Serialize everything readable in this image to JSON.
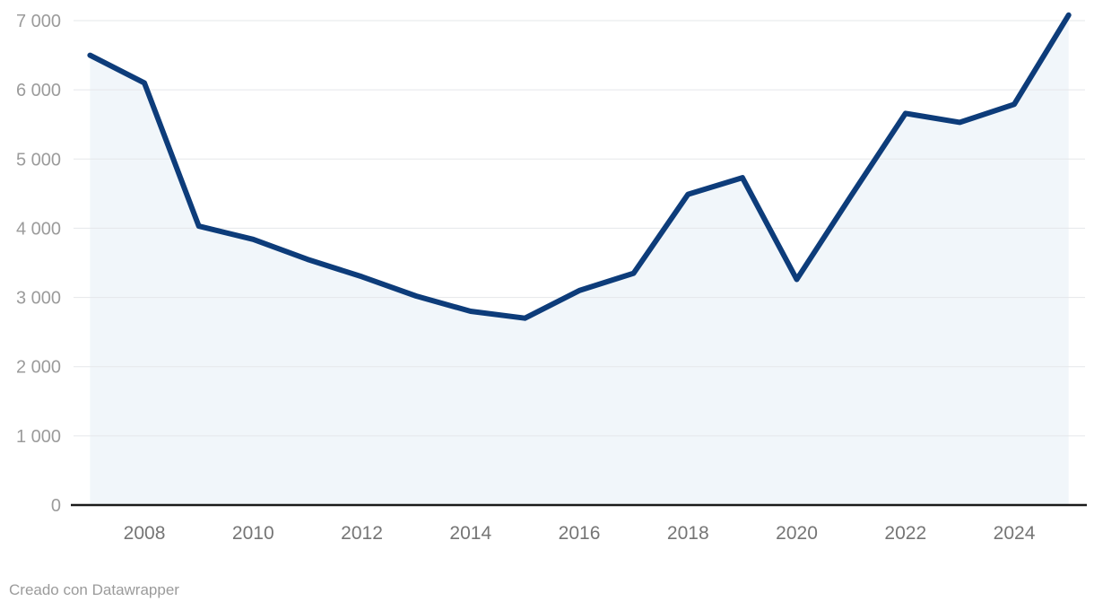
{
  "chart_data": {
    "type": "area",
    "title": "",
    "xlabel": "",
    "ylabel": "",
    "x": [
      2007,
      2008,
      2009,
      2010,
      2011,
      2012,
      2013,
      2014,
      2015,
      2016,
      2017,
      2018,
      2019,
      2020,
      2021,
      2022,
      2023,
      2024,
      2025
    ],
    "values": [
      6500,
      6100,
      4030,
      3840,
      3550,
      3300,
      3020,
      2800,
      2700,
      3100,
      3350,
      4490,
      4730,
      3260,
      4470,
      5660,
      5530,
      5790,
      7080
    ],
    "ylim": [
      0,
      7000
    ],
    "y_ticks": [
      0,
      1000,
      2000,
      3000,
      4000,
      5000,
      6000,
      7000
    ],
    "y_tick_labels": [
      "0",
      "1 000",
      "2 000",
      "3 000",
      "4 000",
      "5 000",
      "6 000",
      "7 000"
    ],
    "x_ticks": [
      2008,
      2010,
      2012,
      2014,
      2016,
      2018,
      2020,
      2022,
      2024
    ],
    "x_tick_labels": [
      "2008",
      "2010",
      "2012",
      "2014",
      "2016",
      "2018",
      "2020",
      "2022",
      "2024"
    ],
    "grid": true,
    "legend": "none",
    "colors": {
      "line": "#0d3c7a",
      "area": "#f1f6fa",
      "gridline": "#e5e7ea",
      "baseline": "#1a1a1a",
      "y_tick_text": "#9b9b9b",
      "x_tick_text": "#757575",
      "background": "#ffffff"
    }
  },
  "footer": {
    "credit": "Creado con Datawrapper"
  }
}
